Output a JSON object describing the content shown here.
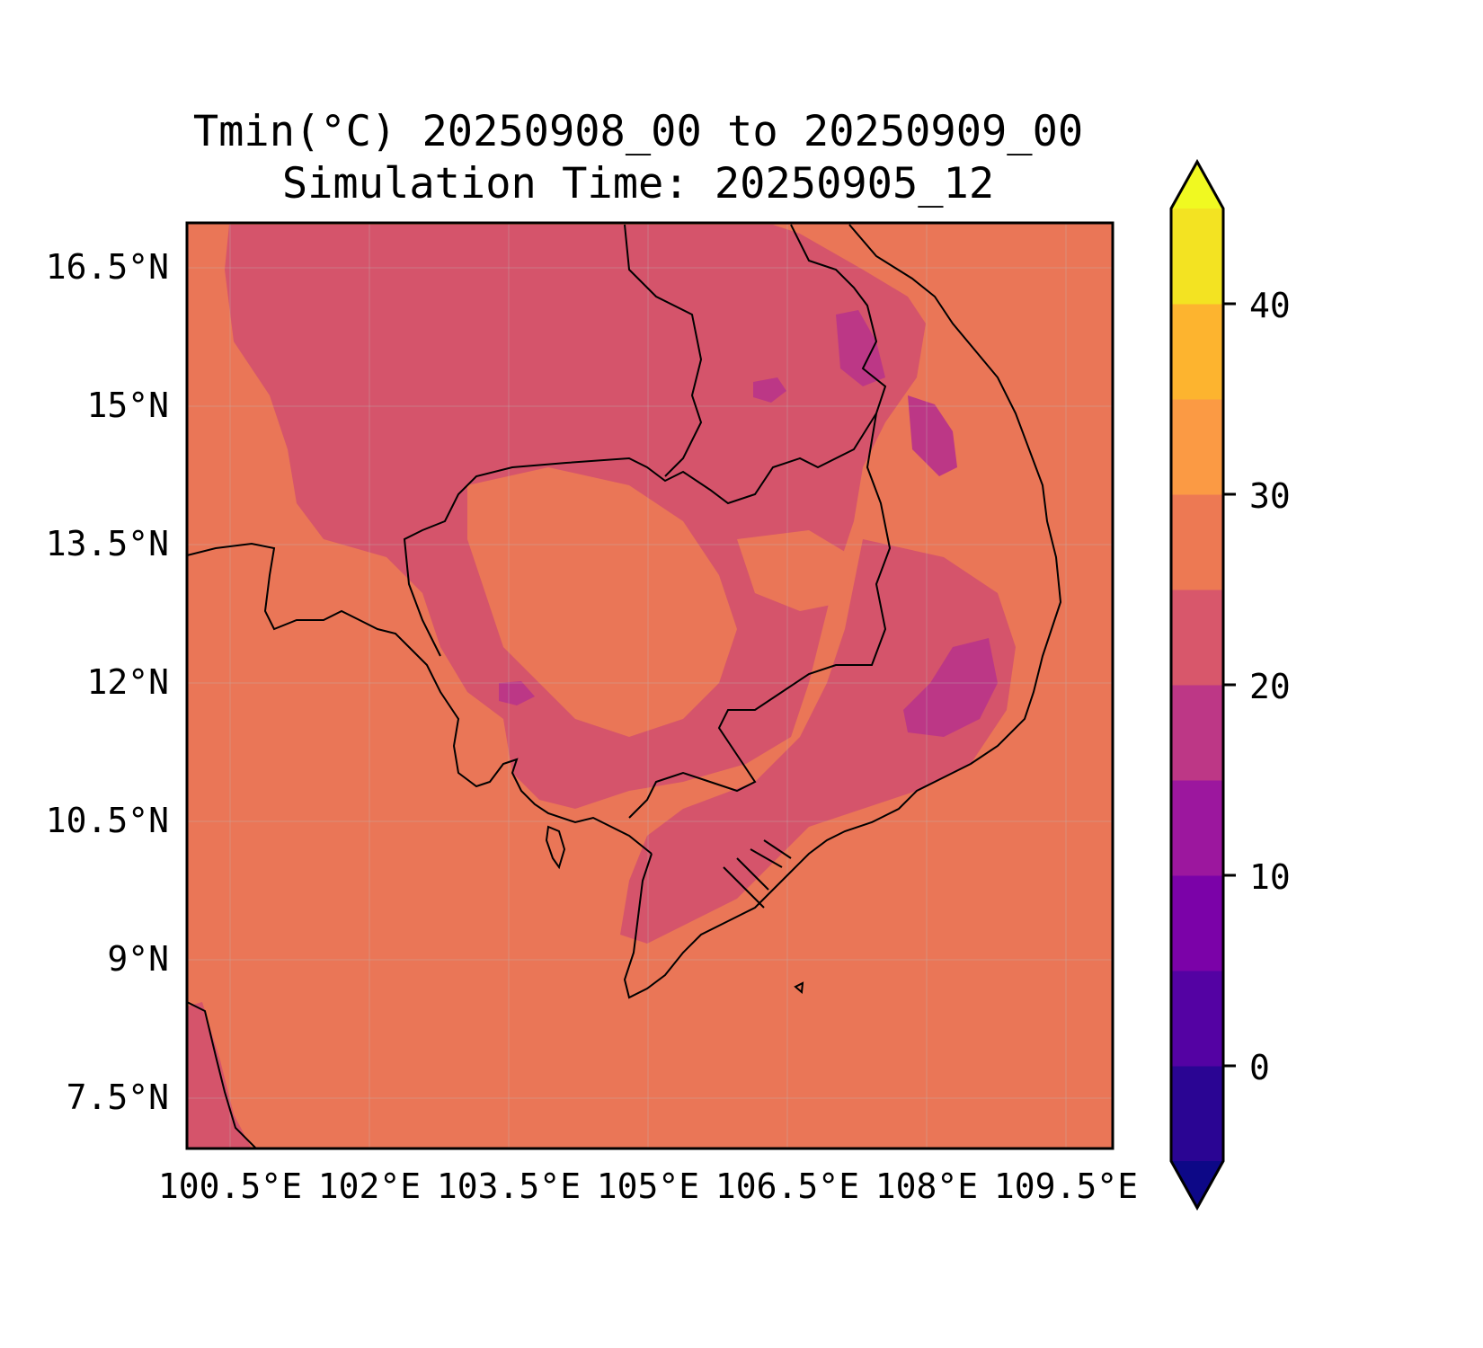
{
  "title_line1": "Tmin(°C) 20250908_00 to 20250909_00",
  "title_line2": "Simulation Time: 20250905_12",
  "map": {
    "variable": "Tmin",
    "units": "°C",
    "lon_range": [
      100.2,
      110.2
    ],
    "lat_range": [
      6.9,
      16.9
    ],
    "lat_ticks": [
      "16.5°N",
      "15°N",
      "13.5°N",
      "12°N",
      "10.5°N",
      "9°N",
      "7.5°N"
    ],
    "lon_ticks": [
      "100.5°E",
      "102°E",
      "103.5°E",
      "105°E",
      "106.5°E",
      "108°E",
      "109.5°E"
    ],
    "gridlines": true,
    "field_summary": {
      "ocean_and_lowlands": "25–30",
      "inland_cambodia_laos_thailand": "20–25",
      "central_highlands_vietnam": "15–20"
    }
  },
  "colorbar": {
    "ticks": [
      "40",
      "30",
      "20",
      "10",
      "0"
    ],
    "levels": [
      -5,
      0,
      5,
      10,
      15,
      20,
      25,
      30,
      35,
      40,
      45
    ],
    "extend": "both",
    "colors": [
      "#0d0887",
      "#2a0593",
      "#5402a3",
      "#7b02a8",
      "#9c179e",
      "#bd3786",
      "#d8576b",
      "#ed7953",
      "#fb9a44",
      "#fdb42f",
      "#f3e322",
      "#f0f921"
    ]
  }
}
